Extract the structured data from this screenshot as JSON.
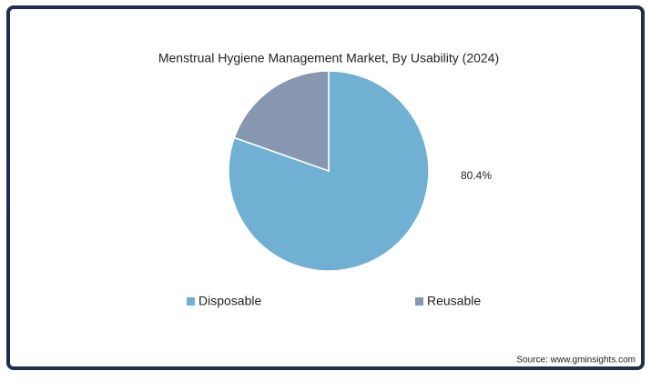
{
  "chart_data": {
    "type": "pie",
    "title": "Menstrual Hygiene Management Market, By Usability (2024)",
    "categories": [
      "Disposable",
      "Reusable"
    ],
    "values": [
      80.4,
      19.6
    ],
    "value_labels": [
      "80.4%",
      null
    ],
    "colors": [
      "#70b0d3",
      "#8797af"
    ],
    "legend": "bottom",
    "source": "Source: www.gminsights.com"
  }
}
